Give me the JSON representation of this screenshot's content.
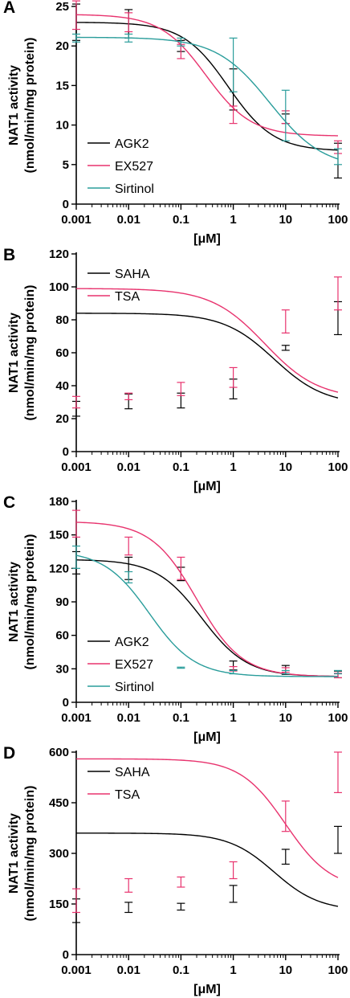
{
  "figure": {
    "panels": [
      {
        "label": "A",
        "ylabel_line1": "NAT1 activity",
        "ylabel_line2": "(nmol/min/mg protein)",
        "xlabel": "[μM]"
      },
      {
        "label": "B",
        "ylabel_line1": "NAT1 activity",
        "ylabel_line2": "(nmol/min/mg protein)",
        "xlabel": "[μM]"
      },
      {
        "label": "C",
        "ylabel_line1": "NAT1 activity",
        "ylabel_line2": "(nmol/min/mg protein)",
        "xlabel": "[μM]"
      },
      {
        "label": "D",
        "ylabel_line1": "NAT1 activity",
        "ylabel_line2": "(nmol/min/mg protein)",
        "xlabel": "[μM]"
      }
    ]
  },
  "chart_data": [
    {
      "panel": "A",
      "type": "line",
      "x_scale": "log",
      "x_ticks": [
        0.001,
        0.01,
        0.1,
        1,
        10,
        100
      ],
      "x_tick_labels": [
        "0.001",
        "0.01",
        "0.1",
        "1",
        "10",
        "100"
      ],
      "xlim": [
        0.001,
        100
      ],
      "ylim": [
        0,
        25
      ],
      "y_ticks": [
        0,
        5,
        10,
        15,
        20,
        25
      ],
      "xlabel": "[μM]",
      "ylabel": "NAT1 activity (nmol/min/mg protein)",
      "legend_position": "bottom-left",
      "series": [
        {
          "name": "AGK2",
          "color": "#000000",
          "x": [
            0.001,
            0.01,
            0.1,
            1,
            10,
            100
          ],
          "y": [
            23.0,
            22.8,
            20.0,
            14.5,
            10.8,
            5.5
          ],
          "err": [
            2.3,
            1.8,
            0.7,
            2.6,
            0.6,
            2.2
          ],
          "fit": {
            "top": 23.0,
            "bottom": 6.7,
            "ec50": 0.8,
            "hill": 1.0
          }
        },
        {
          "name": "EX527",
          "color": "#e8336e",
          "x": [
            0.001,
            0.01,
            0.1,
            1,
            10,
            100
          ],
          "y": [
            23.9,
            23.0,
            19.3,
            11.3,
            11.0,
            7.2
          ],
          "err": [
            1.8,
            1.2,
            0.9,
            1.1,
            0.8,
            0.8
          ],
          "fit": {
            "top": 24.0,
            "bottom": 8.6,
            "ec50": 0.3,
            "hill": 1.0
          }
        },
        {
          "name": "Sirtinol",
          "color": "#2a9d9b",
          "x": [
            0.001,
            0.01,
            0.1,
            1,
            10,
            100
          ],
          "y": [
            21.0,
            21.0,
            20.5,
            17.6,
            11.2,
            6.0
          ],
          "err": [
            0.5,
            0.5,
            0.5,
            3.4,
            3.2,
            1.0
          ],
          "fit": {
            "top": 21.1,
            "bottom": 4.5,
            "ec50": 5.0,
            "hill": 0.85
          }
        }
      ]
    },
    {
      "panel": "B",
      "type": "line",
      "x_scale": "log",
      "x_ticks": [
        0.001,
        0.01,
        0.1,
        1,
        10,
        100
      ],
      "x_tick_labels": [
        "0.001",
        "0.01",
        "0.1",
        "1",
        "10",
        "100"
      ],
      "xlim": [
        0.001,
        100
      ],
      "ylim": [
        0,
        120
      ],
      "y_ticks": [
        0,
        20,
        40,
        60,
        80,
        100,
        120
      ],
      "xlabel": "[μM]",
      "ylabel": "NAT1 activity (nmol/min/mg protein)",
      "legend_position": "top-left",
      "series": [
        {
          "name": "SAHA",
          "color": "#000000",
          "x": [
            0.001,
            0.01,
            0.1,
            1,
            10,
            100
          ],
          "y": [
            26.0,
            30.5,
            31.0,
            38.0,
            63.0,
            81.0
          ],
          "err": [
            4.5,
            4.5,
            4.5,
            6.0,
            1.5,
            10.0
          ],
          "fit": {
            "top": 84.0,
            "bottom": 28.5,
            "ec50": 6.0,
            "hill": 0.9
          }
        },
        {
          "name": "TSA",
          "color": "#e8336e",
          "x": [
            0.001,
            0.01,
            0.1,
            1,
            10,
            100
          ],
          "y": [
            30.0,
            33.5,
            38.0,
            45.0,
            79.0,
            96.0
          ],
          "err": [
            3.5,
            2.0,
            4.0,
            6.0,
            7.0,
            10.0
          ],
          "fit": {
            "top": 99.0,
            "bottom": 32.0,
            "ec50": 4.0,
            "hill": 0.85
          }
        }
      ]
    },
    {
      "panel": "C",
      "type": "line",
      "x_scale": "log",
      "x_ticks": [
        0.001,
        0.01,
        0.1,
        1,
        10,
        100
      ],
      "x_tick_labels": [
        "0.001",
        "0.01",
        "0.1",
        "1",
        "10",
        "100"
      ],
      "xlim": [
        0.001,
        100
      ],
      "ylim": [
        0,
        180
      ],
      "y_ticks": [
        0,
        30,
        60,
        90,
        120,
        150,
        180
      ],
      "xlabel": "[μM]",
      "ylabel": "NAT1 activity (nmol/min/mg protein)",
      "legend_position": "bottom-left",
      "series": [
        {
          "name": "AGK2",
          "color": "#000000",
          "x": [
            0.001,
            0.01,
            0.1,
            1,
            10,
            100
          ],
          "y": [
            125.0,
            120.0,
            115.0,
            33.0,
            29.0,
            25.0
          ],
          "err": [
            10.0,
            10.0,
            6.0,
            4.0,
            4.0,
            3.0
          ],
          "fit": {
            "top": 128.0,
            "bottom": 23.0,
            "ec50": 0.25,
            "hill": 1.0
          }
        },
        {
          "name": "EX527",
          "color": "#e8336e",
          "x": [
            0.001,
            0.01,
            0.1,
            1,
            10,
            100
          ],
          "y": [
            160.0,
            140.0,
            120.0,
            30.0,
            29.0,
            24.0
          ],
          "err": [
            12.0,
            8.0,
            10.0,
            2.0,
            2.0,
            2.0
          ],
          "fit": {
            "top": 162.0,
            "bottom": 23.0,
            "ec50": 0.2,
            "hill": 1.0
          }
        },
        {
          "name": "Sirtinol",
          "color": "#2a9d9b",
          "x": [
            0.001,
            0.01,
            0.1,
            1,
            10,
            100
          ],
          "y": [
            130.0,
            112.0,
            31.0,
            27.0,
            27.0,
            27.0
          ],
          "err": [
            10.0,
            5.0,
            0.5,
            1.5,
            1.5,
            1.5
          ],
          "fit": {
            "top": 136.0,
            "bottom": 23.0,
            "ec50": 0.025,
            "hill": 1.0
          }
        }
      ]
    },
    {
      "panel": "D",
      "type": "line",
      "x_scale": "log",
      "x_ticks": [
        0.001,
        0.01,
        0.1,
        1,
        10,
        100
      ],
      "x_tick_labels": [
        "0.001",
        "0.01",
        "0.1",
        "1",
        "10",
        "100"
      ],
      "xlim": [
        0.001,
        100
      ],
      "ylim": [
        0,
        600
      ],
      "y_ticks": [
        0,
        150,
        300,
        450,
        600
      ],
      "xlabel": "[μM]",
      "ylabel": "NAT1 activity (nmol/min/mg protein)",
      "legend_position": "top-left",
      "series": [
        {
          "name": "SAHA",
          "color": "#000000",
          "x": [
            0.001,
            0.01,
            0.1,
            1,
            10,
            100
          ],
          "y": [
            130.0,
            140.0,
            142.0,
            180.0,
            290.0,
            340.0
          ],
          "err": [
            35.0,
            15.0,
            10.0,
            25.0,
            22.0,
            40.0
          ],
          "fit": {
            "top": 360.0,
            "bottom": 130.0,
            "ec50": 6.0,
            "hill": 1.0
          }
        },
        {
          "name": "TSA",
          "color": "#e8336e",
          "x": [
            0.001,
            0.01,
            0.1,
            1,
            10,
            100
          ],
          "y": [
            160.0,
            205.0,
            215.0,
            250.0,
            410.0,
            540.0
          ],
          "err": [
            35.0,
            20.0,
            15.0,
            25.0,
            45.0,
            60.0
          ],
          "fit": {
            "top": 580.0,
            "bottom": 193.0,
            "ec50": 10.0,
            "hill": 1.0
          }
        }
      ]
    }
  ]
}
